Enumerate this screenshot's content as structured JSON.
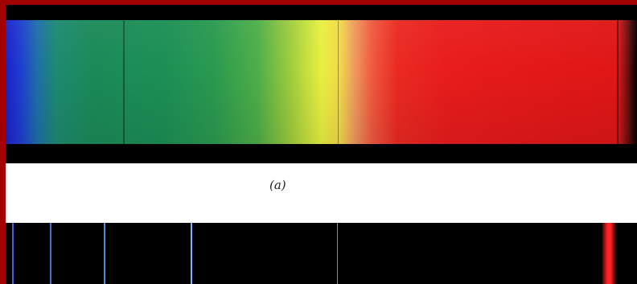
{
  "figure": {
    "caption_label": "(a)"
  },
  "colors": {
    "frame": "#a30000",
    "background": "#000000",
    "caption_strip": "#ffffff"
  },
  "spectrum_continuous": {
    "kind": "continuous",
    "color_order": [
      "blue",
      "green",
      "yellow",
      "orange",
      "red"
    ]
  },
  "spectrum_lines": {
    "kind": "emission",
    "lines": [
      {
        "color": "#4a78ff"
      },
      {
        "color": "#5a8cff"
      },
      {
        "color": "#6aa0ff"
      },
      {
        "color": "#78b0ff"
      },
      {
        "color": "#c8c890"
      },
      {
        "color": "#ff2020"
      }
    ]
  }
}
